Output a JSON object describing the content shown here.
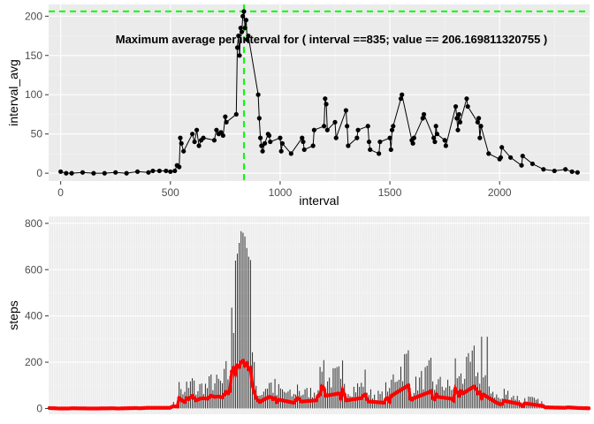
{
  "chart_data": [
    {
      "type": "line",
      "xlabel": "interval",
      "ylabel": "interval_avg",
      "xlim": [
        -55,
        2410
      ],
      "ylim": [
        -10,
        215
      ],
      "xticks": [
        0,
        500,
        1000,
        1500,
        2000
      ],
      "yticks": [
        0,
        50,
        100,
        150,
        200
      ],
      "grid": true,
      "annotation": "Maximum average per interval for ( interval ==835; value == 206.169811320755 )",
      "max_point": {
        "x": 835,
        "y": 206.169811320755
      },
      "reference_line_color": "#00ff00",
      "series": [
        {
          "color": "#000000",
          "x": [
            0,
            25,
            50,
            100,
            150,
            200,
            250,
            300,
            350,
            400,
            420,
            450,
            480,
            500,
            520,
            530,
            540,
            545,
            550,
            560,
            600,
            610,
            620,
            630,
            640,
            650,
            700,
            710,
            720,
            730,
            740,
            750,
            755,
            800,
            805,
            810,
            815,
            820,
            825,
            830,
            835,
            840,
            845,
            850,
            855,
            900,
            905,
            910,
            915,
            920,
            930,
            945,
            950,
            955,
            1000,
            1005,
            1010,
            1050,
            1100,
            1105,
            1110,
            1150,
            1155,
            1200,
            1205,
            1210,
            1215,
            1250,
            1255,
            1300,
            1305,
            1310,
            1350,
            1355,
            1400,
            1405,
            1410,
            1450,
            1455,
            1500,
            1505,
            1510,
            1515,
            1550,
            1555,
            1600,
            1605,
            1610,
            1650,
            1655,
            1700,
            1705,
            1710,
            1715,
            1750,
            1755,
            1800,
            1805,
            1810,
            1815,
            1820,
            1850,
            1855,
            1900,
            1905,
            1910,
            1915,
            1950,
            2000,
            2005,
            2010,
            2050,
            2100,
            2105,
            2150,
            2200,
            2250,
            2300,
            2330,
            2355
          ],
          "values": [
            2,
            0,
            0,
            1,
            0,
            0,
            1,
            0,
            2,
            1,
            3,
            3,
            3,
            2,
            3,
            10,
            8,
            45,
            38,
            28,
            50,
            40,
            55,
            35,
            42,
            45,
            42,
            55,
            50,
            52,
            48,
            72,
            65,
            75,
            160,
            175,
            150,
            185,
            180,
            200,
            206,
            185,
            195,
            170,
            175,
            100,
            70,
            45,
            35,
            28,
            38,
            50,
            48,
            40,
            45,
            28,
            38,
            25,
            45,
            40,
            30,
            35,
            55,
            60,
            95,
            88,
            55,
            65,
            45,
            80,
            60,
            35,
            45,
            55,
            60,
            40,
            30,
            25,
            40,
            45,
            30,
            55,
            60,
            95,
            100,
            42,
            38,
            45,
            70,
            75,
            45,
            40,
            60,
            50,
            42,
            35,
            85,
            70,
            55,
            75,
            65,
            95,
            85,
            65,
            70,
            45,
            60,
            25,
            18,
            20,
            33,
            20,
            10,
            22,
            12,
            5,
            3,
            5,
            2,
            1
          ]
        }
      ]
    },
    {
      "type": "bar",
      "xlabel": "",
      "ylabel": "steps",
      "ylim": [
        -25,
        830
      ],
      "yticks": [
        0,
        200,
        400,
        600,
        800
      ],
      "grid": true,
      "x_count": 288,
      "bar_color": "#333333",
      "smooth_color": "#ff0000",
      "peak": {
        "x": 835,
        "value": 806
      }
    }
  ]
}
